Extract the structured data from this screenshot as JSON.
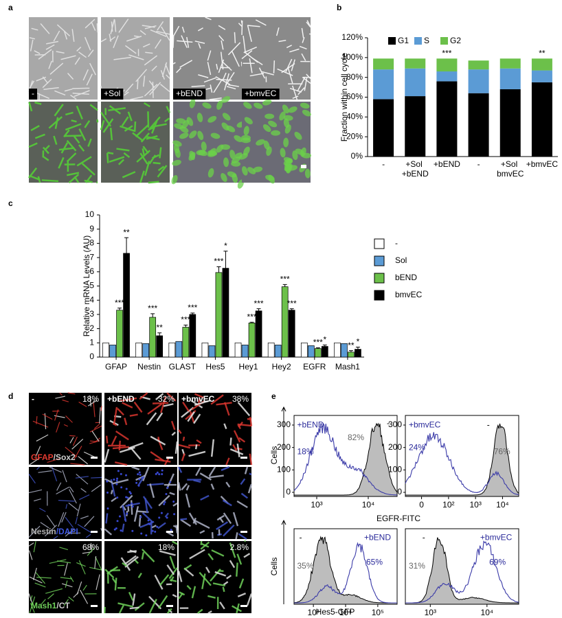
{
  "panel_labels": [
    "a",
    "b",
    "c",
    "d",
    "e"
  ],
  "panel_a": {
    "conditions": [
      "-",
      "+Sol",
      "+bEND",
      "+bmvEC"
    ]
  },
  "chart_data": [
    {
      "type": "stacked-bar",
      "y_label": "Fraction within cell cycle",
      "categories": [
        "- ",
        "+Sol +bEND",
        "+bEND",
        "- ",
        "+Sol bmvEC",
        "+bmvEC"
      ],
      "series": [
        {
          "name": "G1",
          "color": "#000000",
          "values": [
            58,
            61,
            76,
            64,
            68,
            75
          ]
        },
        {
          "name": "S",
          "color": "#5b9bd5",
          "values": [
            30,
            28,
            10,
            24,
            21,
            12
          ]
        },
        {
          "name": "G2",
          "color": "#6cc04a",
          "values": [
            11,
            10,
            13,
            9,
            10,
            12
          ]
        }
      ],
      "annotations": [
        null,
        null,
        "***",
        null,
        null,
        "**"
      ],
      "ylim": [
        0,
        120
      ],
      "yticks": [
        {
          "value": 0,
          "label": "0%"
        },
        {
          "value": 20,
          "label": "20%"
        },
        {
          "value": 40,
          "label": "40%"
        },
        {
          "value": 60,
          "label": "60%"
        },
        {
          "value": 80,
          "label": "80%"
        },
        {
          "value": 100,
          "label": "100%"
        },
        {
          "value": 120,
          "label": "120%"
        }
      ]
    },
    {
      "type": "grouped-bar",
      "y_label": "Relative mRNA Levels (AU)",
      "categories": [
        "GFAP",
        "Nestin",
        "GLAST",
        "Hes5",
        "Hey1",
        "Hey2",
        "EGFR",
        "Mash1"
      ],
      "series": [
        {
          "name": "-",
          "color": "#ffffff",
          "values": [
            1,
            1,
            1,
            1,
            1,
            1,
            1,
            1
          ]
        },
        {
          "name": "Sol",
          "color": "#5b9bd5",
          "values": [
            0.85,
            0.95,
            1.1,
            0.8,
            0.85,
            0.85,
            0.8,
            0.95
          ]
        },
        {
          "name": "bEND",
          "color": "#6cc04a",
          "values": [
            3.3,
            2.8,
            2.1,
            5.95,
            2.4,
            4.95,
            0.6,
            0.35
          ],
          "errors": [
            0.15,
            0.25,
            0.15,
            0.4,
            0.05,
            0.15,
            0.05,
            0.1
          ],
          "significance": [
            "***",
            "***",
            "***",
            "***",
            "***",
            "***",
            "***",
            "**"
          ]
        },
        {
          "name": "bmvEC",
          "color": "#000000",
          "values": [
            7.3,
            1.5,
            3.0,
            6.25,
            3.25,
            3.3,
            0.75,
            0.55
          ],
          "errors": [
            1.1,
            0.2,
            0.1,
            1.2,
            0.15,
            0.1,
            0.1,
            0.15
          ],
          "significance": [
            "**",
            "**",
            "***",
            "*",
            "***",
            "***",
            "*",
            "*"
          ]
        }
      ],
      "ylim": [
        0,
        10
      ],
      "yticks": [
        0,
        1,
        2,
        3,
        4,
        5,
        6,
        7,
        8,
        9,
        10
      ]
    }
  ],
  "panel_d": {
    "columns": [
      {
        "condition": "-",
        "percent": "18%"
      },
      {
        "condition": "+bEND",
        "percent": "32%"
      },
      {
        "condition": "+bmvEC",
        "percent": "38%"
      }
    ],
    "rows": [
      [
        "GFAP",
        "/Sox2"
      ],
      [
        "Nestin",
        "/DAPI"
      ],
      [
        "Mash1",
        "/CT"
      ]
    ],
    "mash1_percents": [
      "68%",
      "18%",
      "2.8%"
    ]
  },
  "panel_e": {
    "y_labels": [
      "Cells",
      "Cells"
    ],
    "x_labels": [
      "EGFR-FITC",
      "Hes5-GFP"
    ],
    "plots": [
      {
        "treatment": "+bEND",
        "treatment_pct": "18%",
        "control": "-",
        "control_pct": "82%",
        "yticks": [
          "0",
          "100",
          "200",
          "300"
        ],
        "xticks": [
          "10³",
          "10⁴"
        ]
      },
      {
        "treatment": "+bmvEC",
        "treatment_pct": "24%",
        "control": "-",
        "control_pct": "76%",
        "yticks": [
          "0",
          "100",
          "200",
          "300"
        ],
        "xticks": [
          "0",
          "10²",
          "10³",
          "10⁴"
        ]
      },
      {
        "treatment": "+bEND",
        "treatment_pct": "65%",
        "control": "-",
        "control_pct": "35%",
        "xticks": [
          "10³",
          "10⁴",
          "10⁵"
        ]
      },
      {
        "treatment": "+bmvEC",
        "treatment_pct": "69%",
        "control": "-",
        "control_pct": "31%",
        "xticks": [
          "10³",
          "10⁴"
        ]
      }
    ]
  }
}
